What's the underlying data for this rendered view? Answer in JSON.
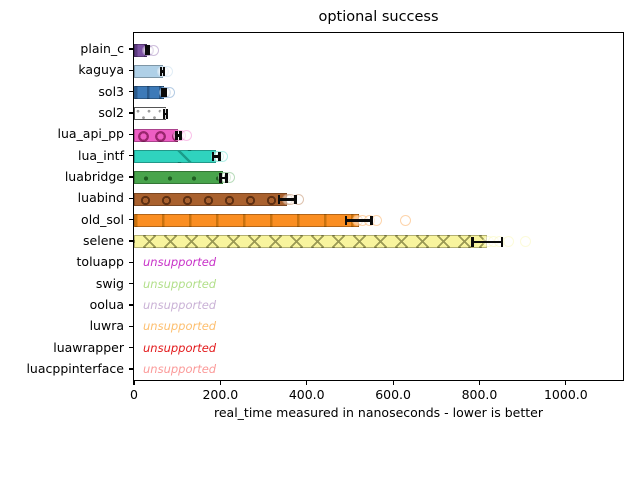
{
  "chart_data": {
    "type": "bar",
    "orientation": "horizontal",
    "title": "optional success",
    "xlabel": "real_time measured in nanoseconds - lower is better",
    "xlim": [
      0,
      1130
    ],
    "grid": false,
    "legend": "none",
    "xticks": [
      {
        "value": 0,
        "label": "0"
      },
      {
        "value": 200,
        "label": "200.0"
      },
      {
        "value": 400,
        "label": "400.0"
      },
      {
        "value": 600,
        "label": "600.0"
      },
      {
        "value": 800,
        "label": "800.0"
      },
      {
        "value": 1000,
        "label": "1000.0"
      }
    ],
    "unsupported_text": "unsupported",
    "bars": [
      {
        "label": "plain_c",
        "value": 30,
        "error": 3,
        "samples": [
          31,
          33,
          44
        ],
        "color": "#7D53A3",
        "hatch": "|",
        "hatch_color": "#5d3b80"
      },
      {
        "label": "kaguya",
        "value": 66,
        "error": 4,
        "samples": [
          66,
          69,
          78
        ],
        "color": "#AFD0E7",
        "hatch": "\\",
        "hatch_color": "#8aa8bf"
      },
      {
        "label": "sol3",
        "value": 69,
        "error": 4,
        "samples": [
          70,
          72,
          83
        ],
        "color": "#3D7AB8",
        "hatch": "|",
        "hatch_color": "#2a5a8c"
      },
      {
        "label": "sol2",
        "value": 73,
        "error": 4,
        "samples": [
          74,
          77,
          88
        ],
        "color": "#FFFFFF",
        "hatch": ".",
        "hatch_color": "#9e9e9e",
        "edge_color": "#555555"
      },
      {
        "label": "lua_api_pp",
        "value": 103,
        "error": 5,
        "samples": [
          104,
          108,
          122
        ],
        "color": "#EE5EC4",
        "hatch": "O",
        "hatch_color": "#99256d"
      },
      {
        "label": "lua_intf",
        "value": 190,
        "error": 8,
        "samples": [
          191,
          195,
          205
        ],
        "color": "#2FD3BE",
        "hatch": "\\",
        "hatch_color": "#1a9c8a"
      },
      {
        "label": "luabridge",
        "value": 207,
        "error": 8,
        "samples": [
          208,
          212,
          221
        ],
        "color": "#48A44C",
        "hatch": ".",
        "hatch_color": "#1e5f22"
      },
      {
        "label": "luabind",
        "value": 355,
        "error": 20,
        "samples": [
          356,
          362,
          381
        ],
        "color": "#A9612E",
        "hatch": "o",
        "hatch_color": "#5f3012"
      },
      {
        "label": "old_sol",
        "value": 520,
        "error": 30,
        "samples": [
          518,
          530,
          545,
          562,
          628
        ],
        "color": "#FA8E22",
        "hatch": "|",
        "hatch_color": "#c9720e"
      },
      {
        "label": "selene",
        "value": 818,
        "error": 35,
        "samples": [
          820,
          833,
          846,
          868,
          906
        ],
        "color": "#F8F49E",
        "hatch": "x",
        "hatch_color": "#9b9a55"
      },
      {
        "label": "toluapp",
        "unsupported": true,
        "color": "#C832C8"
      },
      {
        "label": "swig",
        "unsupported": true,
        "color": "#B2DF8A"
      },
      {
        "label": "oolua",
        "unsupported": true,
        "color": "#CAB2D6"
      },
      {
        "label": "luwra",
        "unsupported": true,
        "color": "#FDBF6F"
      },
      {
        "label": "luawrapper",
        "unsupported": true,
        "color": "#E31A1C"
      },
      {
        "label": "luacppinterface",
        "unsupported": true,
        "color": "#FB9A99"
      }
    ]
  }
}
